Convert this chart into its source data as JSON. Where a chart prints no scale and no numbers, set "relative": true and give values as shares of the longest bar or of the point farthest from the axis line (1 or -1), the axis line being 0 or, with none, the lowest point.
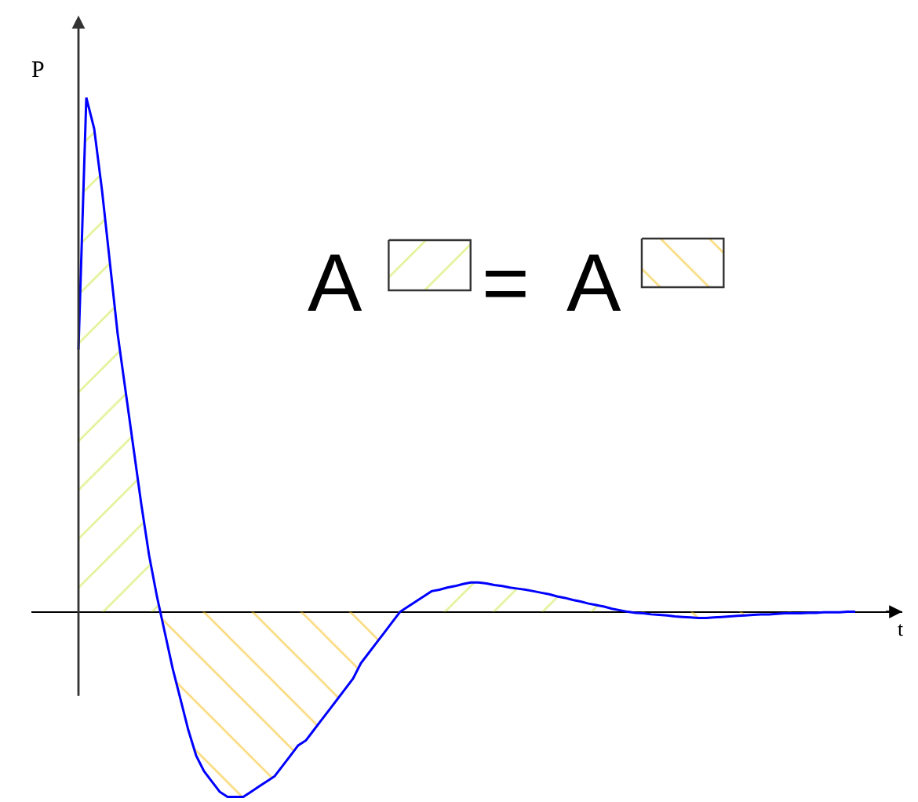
{
  "chart_data": {
    "type": "line",
    "relative": true,
    "xlabel": "t",
    "ylabel": "P",
    "annotations": [
      "A",
      "=",
      "A"
    ],
    "categories": [
      null,
      null,
      null,
      null,
      null,
      null,
      null,
      null,
      null,
      null,
      null,
      null,
      null,
      null,
      null,
      null,
      null,
      null,
      null,
      null,
      null,
      null,
      null,
      null,
      null,
      null,
      null,
      null,
      null,
      null,
      null,
      null,
      null,
      null,
      null,
      null,
      null,
      null,
      null,
      null,
      null,
      null,
      null,
      null,
      null,
      null,
      null,
      null,
      null,
      null,
      null,
      null,
      null,
      null,
      null,
      null,
      null,
      null,
      null,
      null,
      null,
      null,
      null,
      null,
      null,
      null,
      null,
      null,
      null,
      null,
      null,
      null,
      null,
      null,
      null,
      null,
      null,
      null,
      null,
      null,
      null,
      null,
      null,
      null,
      null,
      null,
      null,
      null,
      null,
      null,
      null,
      null,
      null,
      null,
      null,
      null,
      null,
      null,
      null,
      null
    ],
    "series": [
      {
        "color": "#0000ff",
        "values": [
          0.51,
          1,
          0.94,
          0.82,
          0.68,
          0.54,
          0.43,
          0.32,
          0.21,
          0.11,
          0.03,
          -0.04,
          -0.11,
          -0.17,
          -0.23,
          -0.28,
          -0.31,
          -0.33,
          -0.35,
          -0.36,
          -0.36,
          -0.36,
          -0.35,
          -0.34,
          -0.33,
          -0.32,
          -0.3,
          -0.28,
          -0.26,
          -0.25,
          -0.23,
          -0.21,
          -0.19,
          -0.17,
          -0.15,
          -0.13,
          -0.1,
          -0.08,
          -0.06,
          -0.04,
          -0.02,
          0,
          0.01,
          0.02,
          0.03,
          0.04,
          0.043,
          0.047,
          0.05,
          0.054,
          0.057,
          0.057,
          0.055,
          0.052,
          0.05,
          0.047,
          0.045,
          0.043,
          0.04,
          0.037,
          0.034,
          0.03,
          0.027,
          0.023,
          0.02,
          0.016,
          0.013,
          0.01,
          0.006,
          0.003,
          0,
          -0.002,
          -0.003,
          -0.005,
          -0.006,
          -0.007,
          -0.009,
          -0.01,
          -0.011,
          -0.012,
          -0.012,
          -0.011,
          -0.01,
          -0.009,
          -0.008,
          -0.007,
          -0.006,
          -0.005,
          -0.005,
          -0.004,
          -0.003,
          -0.003,
          -0.003,
          -0.002,
          -0.002,
          -0.001,
          -0.001,
          -0.001,
          0,
          0
        ]
      }
    ]
  }
}
